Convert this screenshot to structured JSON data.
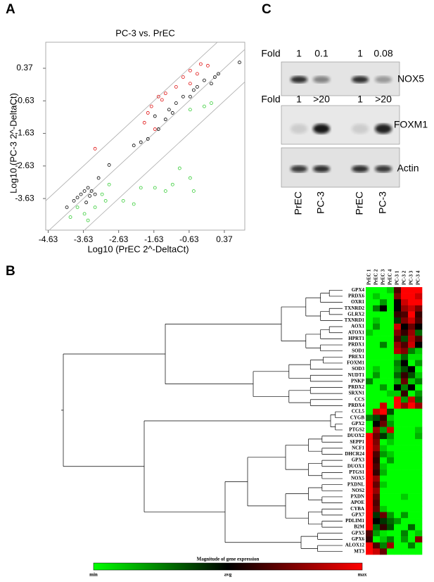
{
  "panel_labels": {
    "a": "A",
    "b": "B",
    "c": "C"
  },
  "chart_data": [
    {
      "type": "scatter",
      "title": "PC-3 vs. PrEC",
      "x_label": "Log10 (PrEC 2^-DeltaCt)",
      "y_label": "Log10 (PC-3 2^-DeltaCt)",
      "xlim": [
        -4.7,
        0.95
      ],
      "ylim": [
        -4.6,
        1.17
      ],
      "xticks": [
        -4.63,
        -3.63,
        -2.63,
        -1.63,
        -0.63,
        0.37
      ],
      "yticks": [
        -3.63,
        -2.63,
        -1.63,
        -0.63,
        0.37
      ],
      "fold_lines": [
        -1,
        0,
        1
      ],
      "series": [
        {
          "color": "#000000",
          "x": [
            -4.1,
            -3.9,
            -3.8,
            -3.7,
            -3.6,
            -3.5,
            -3.45,
            -3.4,
            -3.3,
            -3.55,
            -3.2,
            -2.9,
            -2.2,
            -2.0,
            -1.8,
            -1.5,
            -1.3,
            -1.1,
            -1.0,
            -0.8,
            -0.6,
            -0.5,
            -0.4,
            -0.2,
            0.0,
            0.1,
            0.2,
            0.8,
            -1.6,
            -1.2
          ],
          "y": [
            -3.9,
            -3.7,
            -3.6,
            -3.5,
            -3.4,
            -3.3,
            -3.55,
            -3.4,
            -3.5,
            -3.75,
            -3.0,
            -2.6,
            -2.0,
            -1.9,
            -1.8,
            -1.5,
            -1.2,
            -1.0,
            -0.7,
            -0.5,
            -0.5,
            -0.3,
            -0.2,
            0.0,
            -0.1,
            0.1,
            0.2,
            0.55,
            -1.1,
            -0.9
          ]
        },
        {
          "color": "#e01010",
          "x": [
            -3.3,
            -1.8,
            -1.7,
            -1.5,
            -1.4,
            -1.3,
            -1.0,
            -0.8,
            -0.6,
            -0.4,
            -0.3,
            -0.1,
            -1.9,
            -1.6,
            -0.6
          ],
          "y": [
            -2.1,
            -1.0,
            -0.8,
            -0.5,
            -0.6,
            -0.4,
            -0.2,
            0.1,
            0.3,
            0.2,
            0.5,
            0.45,
            -1.3,
            -1.5,
            -0.1
          ]
        },
        {
          "color": "#33cc33",
          "x": [
            -4.0,
            -3.8,
            -3.6,
            -3.3,
            -3.0,
            -2.9,
            -3.1,
            -2.5,
            -2.0,
            -1.6,
            -1.3,
            -1.1,
            -0.6,
            -0.5,
            -0.9,
            -0.6,
            0.0,
            -0.2,
            -3.5,
            -2.2
          ],
          "y": [
            -4.2,
            -3.9,
            -4.1,
            -3.9,
            -3.7,
            -3.2,
            -3.5,
            -3.7,
            -3.3,
            -3.3,
            -3.4,
            -3.2,
            -3.0,
            -3.4,
            -2.7,
            -0.9,
            -0.7,
            -0.8,
            -4.3,
            -3.8
          ]
        }
      ]
    },
    {
      "type": "heatmap",
      "columns": [
        "PrEC 1",
        "PrEC 2",
        "PrEC 3",
        "PrEC 4",
        "PC-3 1",
        "PC-3 2",
        "PC-3 3",
        "PC-3 4"
      ],
      "rows": [
        "GPX4",
        "PRDX6",
        "OXR1",
        "TXNRD2",
        "GLRX2",
        "TXNRD1",
        "AOX1",
        "ATOX1",
        "HPRT1",
        "PRDX1",
        "SOD1",
        "PREX1",
        "FOXM1",
        "SOD3",
        "NUDT1",
        "PNKP",
        "PRDX2",
        "SRXN1",
        "CCS",
        "PRDX4",
        "CCL5",
        "CYGB",
        "GPX2",
        "PTGS2",
        "DUOX2",
        "SEPP1",
        "NCF1",
        "DHCR24",
        "GPX3",
        "DUOX1",
        "PTGS1",
        "NOX5",
        "PXDNL",
        "NOS2",
        "PXDN",
        "APOE",
        "CYBA",
        "GPX7",
        "PDLIM1",
        "B2M",
        "GPX5",
        "GPX6",
        "ALOX12",
        "MT3"
      ],
      "values": [
        [
          -1,
          -1,
          -1,
          -0.8,
          0.3,
          1,
          1,
          1
        ],
        [
          -1,
          -0.8,
          -1,
          -1,
          0.5,
          1,
          1,
          0.8
        ],
        [
          -1,
          -1,
          -0.6,
          -1,
          0,
          0.8,
          1,
          1
        ],
        [
          -1,
          -0.5,
          0,
          -1,
          0,
          0.6,
          0.8,
          0.5
        ],
        [
          -1,
          -1,
          -1,
          -1,
          0.2,
          0.3,
          1,
          0.2
        ],
        [
          -1,
          -0.8,
          -1,
          -1,
          -0.2,
          0.5,
          0.8,
          0.3
        ],
        [
          -1,
          -0.6,
          -1,
          -1,
          0.8,
          0,
          0.4,
          0
        ],
        [
          -0.8,
          -1,
          -1,
          -1,
          0.5,
          0.2,
          0.6,
          -0.4
        ],
        [
          -1,
          -1,
          -1,
          -1,
          0.3,
          -0.3,
          0.7,
          0.3
        ],
        [
          -1,
          -1,
          -0.5,
          -1,
          0.6,
          0.3,
          0.8,
          0
        ],
        [
          -1,
          -1,
          -1,
          -1,
          0.7,
          0.5,
          -0.5,
          -0.8
        ],
        [
          -1,
          -1,
          -1,
          -1,
          -0.8,
          -0.4,
          -0.9,
          -0.9
        ],
        [
          -1,
          -1,
          -1,
          -1,
          -0.5,
          0,
          -1,
          -0.6
        ],
        [
          -1,
          -0.8,
          -1,
          -1,
          -0.6,
          -0.3,
          0,
          -1
        ],
        [
          -1,
          -0.6,
          -1,
          -1,
          -0.4,
          0.2,
          -0.3,
          -0.8
        ],
        [
          -0.5,
          -1,
          -1,
          -1,
          -0.7,
          0.4,
          -0.8,
          -0.5
        ],
        [
          -1,
          -1,
          -0.6,
          -1,
          0,
          -0.5,
          0,
          -1
        ],
        [
          -1,
          -1,
          -1,
          -0.8,
          -0.8,
          0.2,
          -1,
          -0.6
        ],
        [
          -1,
          -1,
          -1,
          -1,
          1,
          -0.6,
          0.8,
          -0.4
        ],
        [
          -1,
          -1,
          0.8,
          -1,
          1,
          0.6,
          1,
          0.6
        ],
        [
          -1,
          0.8,
          1,
          -0.3,
          -1,
          -1,
          -1,
          -1
        ],
        [
          -0.5,
          -0.3,
          0.2,
          -0.8,
          -1,
          -1,
          -1,
          -1
        ],
        [
          -1,
          0,
          0.4,
          -0.6,
          -1,
          -1,
          -1,
          -1
        ],
        [
          -1,
          0.6,
          -0.6,
          0.8,
          -1,
          -1,
          -1,
          -0.8
        ],
        [
          1,
          0.4,
          -0.2,
          -0.6,
          -1,
          -1,
          -1,
          -0.7
        ],
        [
          1,
          0.5,
          -1,
          -0.8,
          -1,
          -1,
          -1,
          -1
        ],
        [
          1,
          0.6,
          -0.8,
          -1,
          -1,
          -1,
          -1,
          -1
        ],
        [
          1,
          0.3,
          -0.6,
          -0.8,
          -1,
          -1,
          -1,
          -1
        ],
        [
          1,
          0.2,
          -1,
          -0.6,
          -1,
          -1,
          -1,
          -1
        ],
        [
          1,
          0.3,
          -0.8,
          -1,
          -1,
          -1,
          -1,
          -1
        ],
        [
          1,
          0.2,
          -0.7,
          -1,
          -1,
          -1,
          -1,
          -1
        ],
        [
          1,
          0.6,
          -1,
          -1,
          -1,
          -1,
          -1,
          -1
        ],
        [
          1,
          0.4,
          -0.8,
          -1,
          -1,
          -1,
          -1,
          -1
        ],
        [
          1,
          0.6,
          -1,
          -1,
          -1,
          -1,
          -1,
          -1
        ],
        [
          1,
          0.4,
          -1,
          -1,
          -1,
          -0.8,
          -1,
          -1
        ],
        [
          1,
          0.3,
          -1,
          -1,
          -1,
          -1,
          -1,
          -1
        ],
        [
          1,
          0.4,
          -0.8,
          -1,
          -1,
          -1,
          -1,
          -1
        ],
        [
          1,
          -0.2,
          0.4,
          -0.6,
          -1,
          -0.6,
          -1,
          -1
        ],
        [
          1,
          0,
          -0.2,
          -0.4,
          -0.6,
          -1,
          -1,
          -1
        ],
        [
          1,
          -0.4,
          0.2,
          -0.3,
          -1,
          -1,
          -0.4,
          -1
        ],
        [
          0.3,
          -0.6,
          -0.9,
          -1,
          -1,
          -0.5,
          -1,
          -0.8
        ],
        [
          0.2,
          -1,
          -0.8,
          -0.5,
          -1,
          -0.6,
          -1,
          0.5
        ],
        [
          1,
          0.3,
          -0.5,
          0.6,
          -1,
          -1,
          -0.5,
          -1
        ],
        [
          1,
          0.8,
          0.4,
          -1,
          -1,
          -1,
          -1,
          -1
        ]
      ],
      "vlim": [
        -1,
        1
      ],
      "colorscale": [
        "#00ff00",
        "#000000",
        "#ff0000"
      ],
      "colorbar_title": "Magnitude of gene expression",
      "colorbar_labels": [
        "min",
        "avg",
        "max"
      ]
    }
  ],
  "blot": {
    "fold_label": "Fold",
    "rows": [
      {
        "label": "NOX5",
        "fold": [
          "1",
          "0.1",
          "1",
          "0.08"
        ]
      },
      {
        "label": "FOXM1",
        "fold": [
          "1",
          ">20",
          "1",
          ">20"
        ]
      },
      {
        "label": "Actin"
      }
    ],
    "lanes": [
      "PrEC",
      "PC-3",
      "PrEC",
      "PC-3"
    ]
  }
}
